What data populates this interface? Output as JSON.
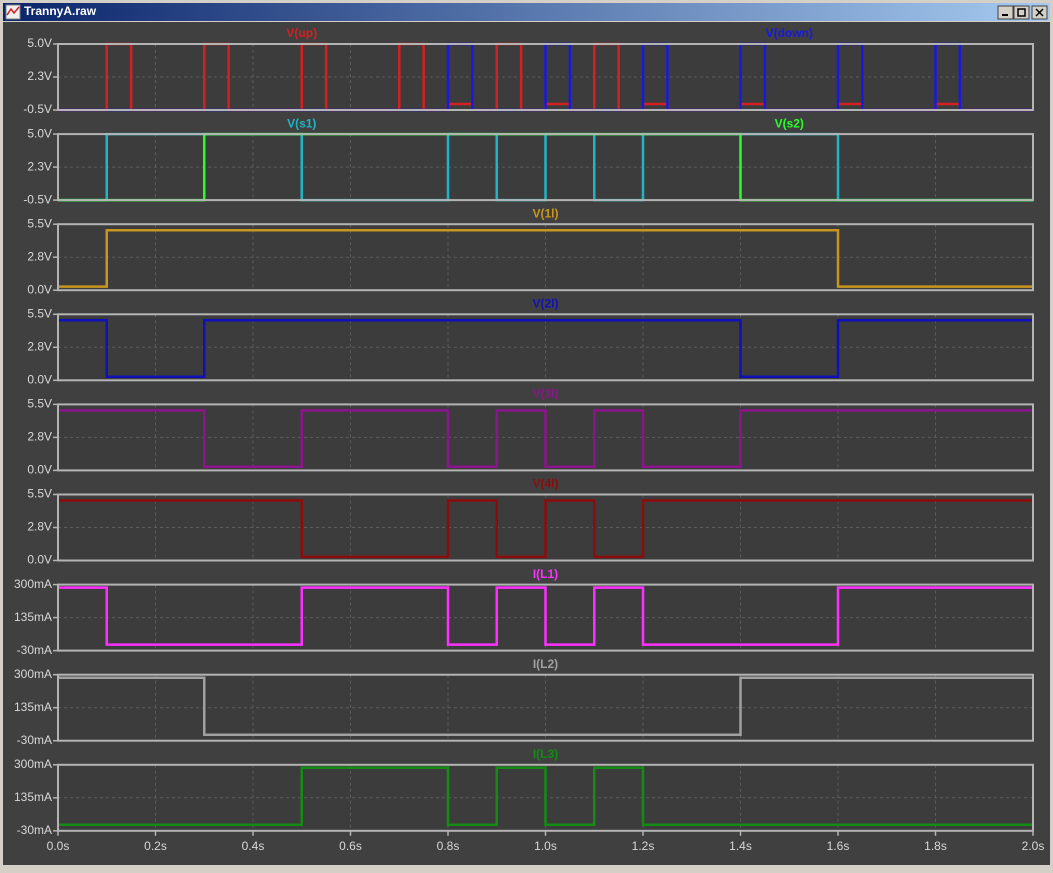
{
  "window": {
    "title": "TrannyA.raw"
  },
  "chart_data": [
    {
      "type": "line",
      "ylim": [
        -0.5,
        5
      ],
      "yticks": [
        {
          "value": -0.5,
          "label": "-0.5V"
        },
        {
          "value": 2.25,
          "label": "2.3V"
        },
        {
          "value": 5,
          "label": "5.0V"
        }
      ],
      "grid": true,
      "series": [
        {
          "name": "V(up)",
          "color": "#d42020",
          "x": [
            0,
            0.1,
            0.1,
            0.15,
            0.15,
            0.3,
            0.3,
            0.35,
            0.35,
            0.5,
            0.5,
            0.55,
            0.55,
            0.7,
            0.7,
            0.75,
            0.75,
            0.8,
            0.8,
            0.85,
            0.85,
            0.9,
            0.9,
            0.95,
            0.95,
            1.0,
            1.0,
            1.05,
            1.05,
            1.1,
            1.1,
            1.15,
            1.15,
            1.2,
            1.2,
            1.25,
            1.25,
            1.4,
            1.4,
            1.45,
            1.45,
            1.6,
            1.6,
            1.65,
            1.65,
            1.8,
            1.8,
            1.85,
            1.85,
            2.0
          ],
          "values": [
            -0.5,
            -0.5,
            5,
            5,
            -0.5,
            -0.5,
            5,
            5,
            -0.5,
            -0.5,
            5,
            5,
            -0.5,
            -0.5,
            5,
            5,
            -0.5,
            -0.5,
            0,
            0,
            -0.5,
            -0.5,
            5,
            5,
            -0.5,
            -0.5,
            0,
            0,
            -0.5,
            -0.5,
            5,
            5,
            -0.5,
            -0.5,
            0,
            0,
            -0.5,
            -0.5,
            0,
            0,
            -0.5,
            -0.5,
            0,
            0,
            -0.5,
            -0.5,
            0,
            0,
            -0.5,
            -0.5
          ]
        },
        {
          "name": "V(down)",
          "color": "#1818e0",
          "x": [
            0,
            0.8,
            0.8,
            0.85,
            0.85,
            1.0,
            1.0,
            1.05,
            1.05,
            1.2,
            1.2,
            1.25,
            1.25,
            1.4,
            1.4,
            1.45,
            1.45,
            1.6,
            1.6,
            1.65,
            1.65,
            1.8,
            1.8,
            1.85,
            1.85,
            2.0
          ],
          "values": [
            -0.5,
            -0.5,
            5,
            5,
            -0.5,
            -0.5,
            5,
            5,
            -0.5,
            -0.5,
            5,
            5,
            -0.5,
            -0.5,
            5,
            5,
            -0.5,
            -0.5,
            5,
            5,
            -0.5,
            -0.5,
            5,
            5,
            -0.5,
            -0.5
          ]
        }
      ]
    },
    {
      "type": "line",
      "ylim": [
        -0.5,
        5
      ],
      "yticks": [
        {
          "value": -0.5,
          "label": "-0.5V"
        },
        {
          "value": 2.25,
          "label": "2.3V"
        },
        {
          "value": 5,
          "label": "5.0V"
        }
      ],
      "grid": true,
      "series": [
        {
          "name": "V(s1)",
          "color": "#20b4c4",
          "x": [
            0,
            0.1,
            0.1,
            0.5,
            0.5,
            0.8,
            0.8,
            0.9,
            0.9,
            1.0,
            1.0,
            1.1,
            1.1,
            1.2,
            1.2,
            1.6,
            1.6,
            2.0
          ],
          "values": [
            -0.5,
            -0.5,
            5,
            5,
            -0.5,
            -0.5,
            5,
            5,
            -0.5,
            -0.5,
            5,
            5,
            -0.5,
            -0.5,
            5,
            5,
            -0.5,
            -0.5
          ]
        },
        {
          "name": "V(s2)",
          "color": "#28ff28",
          "x": [
            0,
            0.3,
            0.3,
            1.4,
            1.4,
            2.0
          ],
          "values": [
            -0.5,
            -0.5,
            5,
            5,
            -0.5,
            -0.5
          ]
        }
      ]
    },
    {
      "type": "line",
      "ylim": [
        0,
        5.5
      ],
      "yticks": [
        {
          "value": 0,
          "label": "0.0V"
        },
        {
          "value": 2.75,
          "label": "2.8V"
        },
        {
          "value": 5.5,
          "label": "5.5V"
        }
      ],
      "grid": true,
      "series": [
        {
          "name": "V(1l)",
          "color": "#c8961e",
          "x": [
            0,
            0.1,
            0.1,
            1.6,
            1.6,
            2.0
          ],
          "values": [
            0.3,
            0.3,
            5,
            5,
            0.3,
            0.3
          ]
        }
      ]
    },
    {
      "type": "line",
      "ylim": [
        0,
        5.5
      ],
      "yticks": [
        {
          "value": 0,
          "label": "0.0V"
        },
        {
          "value": 2.75,
          "label": "2.8V"
        },
        {
          "value": 5.5,
          "label": "5.5V"
        }
      ],
      "grid": true,
      "series": [
        {
          "name": "V(2l)",
          "color": "#1010b8",
          "x": [
            0,
            0.1,
            0.1,
            0.3,
            0.3,
            1.4,
            1.4,
            1.6,
            1.6,
            2.0
          ],
          "values": [
            5,
            5,
            0.3,
            0.3,
            5,
            5,
            0.3,
            0.3,
            5,
            5
          ]
        }
      ]
    },
    {
      "type": "line",
      "ylim": [
        0,
        5.5
      ],
      "yticks": [
        {
          "value": 0,
          "label": "0.0V"
        },
        {
          "value": 2.75,
          "label": "2.8V"
        },
        {
          "value": 5.5,
          "label": "5.5V"
        }
      ],
      "grid": true,
      "series": [
        {
          "name": "V(3l)",
          "color": "#8c148c",
          "x": [
            0,
            0.3,
            0.3,
            0.5,
            0.5,
            0.8,
            0.8,
            0.9,
            0.9,
            1.0,
            1.0,
            1.1,
            1.1,
            1.2,
            1.2,
            1.4,
            1.4,
            2.0
          ],
          "values": [
            5,
            5,
            0.3,
            0.3,
            5,
            5,
            0.3,
            0.3,
            5,
            5,
            0.3,
            0.3,
            5,
            5,
            0.3,
            0.3,
            5,
            5
          ]
        }
      ]
    },
    {
      "type": "line",
      "ylim": [
        0,
        5.5
      ],
      "yticks": [
        {
          "value": 0,
          "label": "0.0V"
        },
        {
          "value": 2.75,
          "label": "2.8V"
        },
        {
          "value": 5.5,
          "label": "5.5V"
        }
      ],
      "grid": true,
      "series": [
        {
          "name": "V(4l)",
          "color": "#8c0c0c",
          "x": [
            0,
            0.5,
            0.5,
            0.8,
            0.8,
            0.9,
            0.9,
            1.0,
            1.0,
            1.1,
            1.1,
            1.2,
            1.2,
            2.0
          ],
          "values": [
            5,
            5,
            0.3,
            0.3,
            5,
            5,
            0.3,
            0.3,
            5,
            5,
            0.3,
            0.3,
            5,
            5
          ]
        }
      ]
    },
    {
      "type": "line",
      "ylim": [
        -30,
        300
      ],
      "yticks": [
        {
          "value": -30,
          "label": "-30mA"
        },
        {
          "value": 135,
          "label": "135mA"
        },
        {
          "value": 300,
          "label": "300mA"
        }
      ],
      "grid": true,
      "series": [
        {
          "name": "I(L1)",
          "color": "#ff30ff",
          "x": [
            0,
            0.1,
            0.1,
            0.5,
            0.5,
            0.8,
            0.8,
            0.9,
            0.9,
            1.0,
            1.0,
            1.1,
            1.1,
            1.2,
            1.2,
            1.6,
            1.6,
            2.0
          ],
          "values": [
            285,
            285,
            0,
            0,
            285,
            285,
            0,
            0,
            285,
            285,
            0,
            0,
            285,
            285,
            0,
            0,
            285,
            285
          ]
        }
      ]
    },
    {
      "type": "line",
      "ylim": [
        -30,
        300
      ],
      "yticks": [
        {
          "value": -30,
          "label": "-30mA"
        },
        {
          "value": 135,
          "label": "135mA"
        },
        {
          "value": 300,
          "label": "300mA"
        }
      ],
      "grid": true,
      "series": [
        {
          "name": "I(L2)",
          "color": "#a0a0a0",
          "x": [
            0,
            0.3,
            0.3,
            1.4,
            1.4,
            2.0
          ],
          "values": [
            285,
            285,
            0,
            0,
            285,
            285
          ]
        }
      ]
    },
    {
      "type": "line",
      "ylim": [
        -30,
        300
      ],
      "yticks": [
        {
          "value": -30,
          "label": "-30mA"
        },
        {
          "value": 135,
          "label": "135mA"
        },
        {
          "value": 300,
          "label": "300mA"
        }
      ],
      "grid": true,
      "xlim": [
        0,
        2
      ],
      "xticks": [
        {
          "value": 0,
          "label": "0.0s"
        },
        {
          "value": 0.2,
          "label": "0.2s"
        },
        {
          "value": 0.4,
          "label": "0.4s"
        },
        {
          "value": 0.6,
          "label": "0.6s"
        },
        {
          "value": 0.8,
          "label": "0.8s"
        },
        {
          "value": 1,
          "label": "1.0s"
        },
        {
          "value": 1.2,
          "label": "1.2s"
        },
        {
          "value": 1.4,
          "label": "1.4s"
        },
        {
          "value": 1.6,
          "label": "1.6s"
        },
        {
          "value": 1.8,
          "label": "1.8s"
        },
        {
          "value": 2,
          "label": "2.0s"
        }
      ],
      "series": [
        {
          "name": "I(L3)",
          "color": "#148c14",
          "x": [
            0,
            0.5,
            0.5,
            0.8,
            0.8,
            0.9,
            0.9,
            1.0,
            1.0,
            1.1,
            1.1,
            1.2,
            1.2,
            2.0
          ],
          "values": [
            0,
            0,
            285,
            285,
            0,
            0,
            285,
            285,
            0,
            0,
            285,
            285,
            0,
            0
          ]
        }
      ]
    }
  ]
}
